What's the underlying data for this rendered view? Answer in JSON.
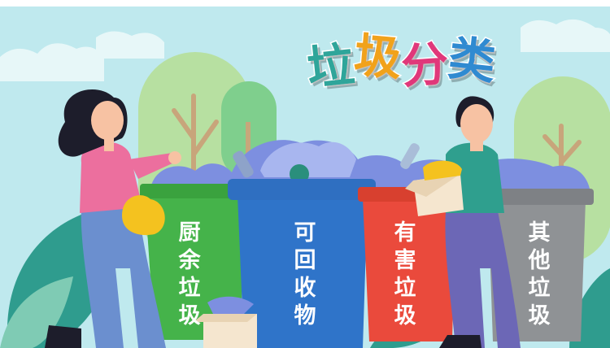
{
  "title": {
    "chars": [
      "垃",
      "圾",
      "分",
      "类"
    ]
  },
  "bins": {
    "kitchen": {
      "label": "厨余垃圾",
      "color": "#45b34a"
    },
    "recyclable": {
      "label": "可回收物",
      "color": "#2f74c9"
    },
    "hazardous": {
      "label": "有害垃圾",
      "color": "#ea4a3c"
    },
    "other": {
      "label": "其他垃圾",
      "color": "#8f9295"
    }
  },
  "colors": {
    "sky": "#bfe9ee",
    "tree": "#b9e2a4",
    "bush": "#8fd7c5"
  },
  "icons": [
    "woman-with-bag",
    "man-with-box",
    "trash-pile",
    "cardboard-box",
    "tree"
  ]
}
